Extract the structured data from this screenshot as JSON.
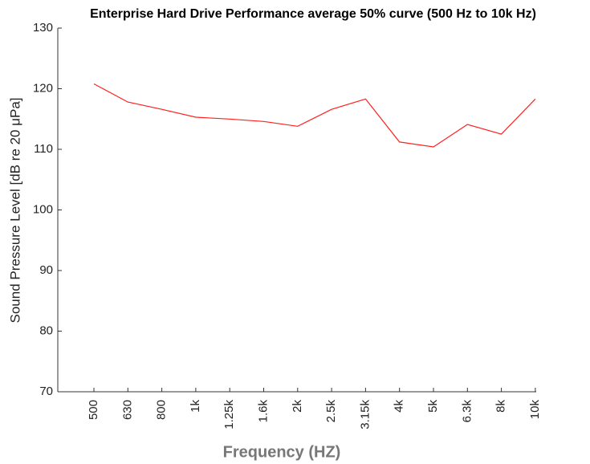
{
  "chart_data": {
    "type": "line",
    "title": "Enterprise Hard Drive Performance average 50% curve (500 Hz to 10k Hz)",
    "x_label": "Frequency (HZ)",
    "y_label": "Sound Pressure Level [dB re 20 μPa]",
    "categories": [
      "500",
      "630",
      "800",
      "1k",
      "1.25k",
      "1.6k",
      "2k",
      "2.5k",
      "3.15k",
      "4k",
      "5k",
      "6.3k",
      "8k",
      "10k"
    ],
    "series": [
      {
        "name": "average 50%",
        "color": "#ff2020",
        "values": [
          120.8,
          117.8,
          116.6,
          115.3,
          115.0,
          114.6,
          113.8,
          116.6,
          118.3,
          111.2,
          110.4,
          114.1,
          112.5,
          118.3
        ]
      }
    ],
    "ylim": [
      70,
      130
    ],
    "yticks": [
      70,
      80,
      90,
      100,
      110,
      120,
      130
    ],
    "grid": false
  }
}
